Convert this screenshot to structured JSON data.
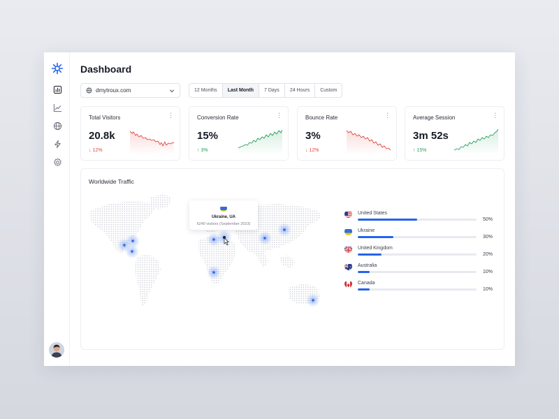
{
  "sidebar": {
    "items": [
      {
        "name": "bar-chart-icon",
        "active": true
      },
      {
        "name": "line-chart-icon",
        "active": false
      },
      {
        "name": "globe-icon",
        "active": false
      },
      {
        "name": "lightning-icon",
        "active": false
      },
      {
        "name": "gear-icon",
        "active": false
      }
    ]
  },
  "header": {
    "title": "Dashboard",
    "site_select": {
      "value": "dmytroux.com"
    },
    "ranges": [
      {
        "label": "12 Months",
        "active": false
      },
      {
        "label": "Last Month",
        "active": true
      },
      {
        "label": "7 Days",
        "active": false
      },
      {
        "label": "24 Hours",
        "active": false
      },
      {
        "label": "Custom",
        "active": false
      }
    ]
  },
  "cards": [
    {
      "title": "Total Visitors",
      "value": "20.8k",
      "delta": "12%",
      "direction": "down"
    },
    {
      "title": "Conversion Rate",
      "value": "15%",
      "delta": "3%",
      "direction": "up"
    },
    {
      "title": "Bounce Rate",
      "value": "3%",
      "delta": "12%",
      "direction": "down"
    },
    {
      "title": "Average Session",
      "value": "3m 52s",
      "delta": "15%",
      "direction": "up"
    }
  ],
  "traffic": {
    "title": "Worldwide Traffic",
    "tooltip": {
      "country": "Ukraine, UA",
      "detail": "6240 visitors (September 2023)"
    },
    "countries": [
      {
        "name": "United States",
        "percent": "50%",
        "share": 0.5,
        "flag": "us"
      },
      {
        "name": "Ukraine",
        "percent": "30%",
        "share": 0.3,
        "flag": "ua"
      },
      {
        "name": "United Kingdom",
        "percent": "20%",
        "share": 0.2,
        "flag": "gb"
      },
      {
        "name": "Australia",
        "percent": "10%",
        "share": 0.1,
        "flag": "au"
      },
      {
        "name": "Canada",
        "percent": "10%",
        "share": 0.1,
        "flag": "ca"
      }
    ]
  },
  "colors": {
    "accent": "#2563eb",
    "down": "#e0473d",
    "up": "#23a05a"
  }
}
